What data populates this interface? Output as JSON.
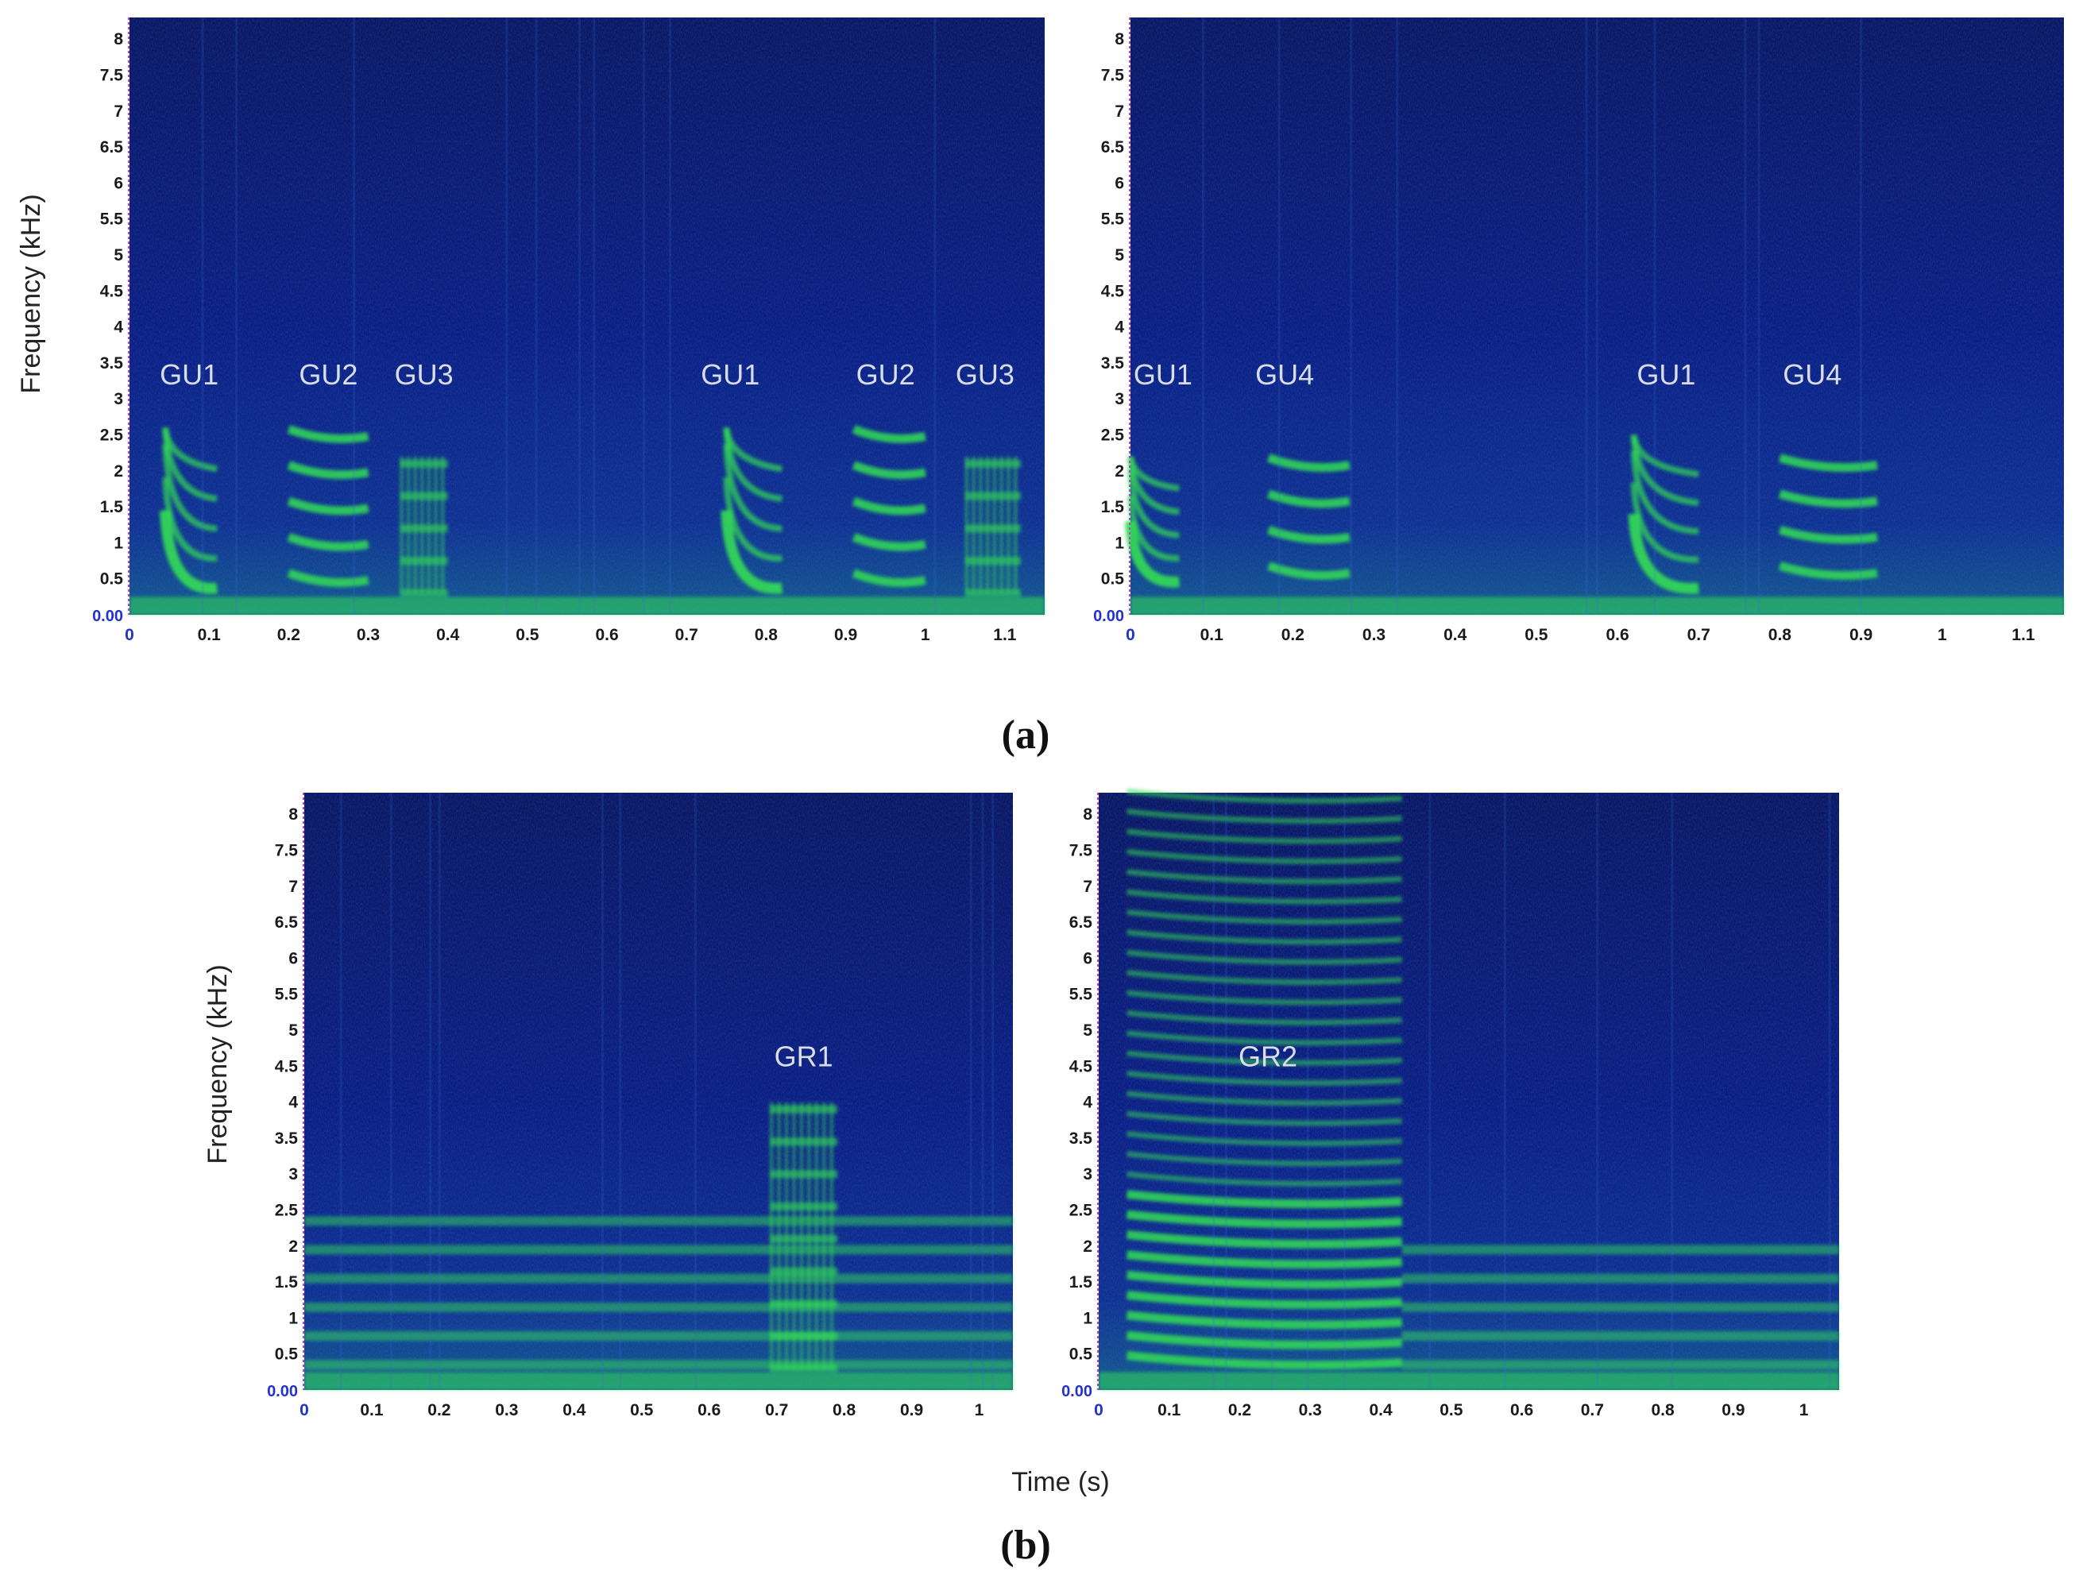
{
  "figure": {
    "panel_labels": [
      "(a)",
      "(b)"
    ],
    "x_axis_label": "Time (s)",
    "y_axis_label": "Frequency (kHz)",
    "zero_label": "0.00",
    "colors": {
      "background": "#0a1a7a",
      "energy": "#33dd55",
      "zero_tick": "#2233cc"
    }
  },
  "chart_data": [
    {
      "type": "heatmap",
      "title": "",
      "ylabel": "Frequency (kHz)",
      "xlabel": "",
      "xlim": [
        0,
        1.15
      ],
      "ylim": [
        0,
        8.3
      ],
      "y_ticks": [
        "8",
        "7.5",
        "7",
        "6.5",
        "6",
        "5.5",
        "5",
        "4.5",
        "4",
        "3.5",
        "3",
        "2.5",
        "2",
        "1.5",
        "1",
        "0.5"
      ],
      "x_ticks": [
        "0",
        "0.1",
        "0.2",
        "0.3",
        "0.4",
        "0.5",
        "0.6",
        "0.7",
        "0.8",
        "0.9",
        "1",
        "1.1"
      ],
      "annotations": [
        {
          "text": "GU1",
          "x": 0.075,
          "y": 3.2
        },
        {
          "text": "GU2",
          "x": 0.25,
          "y": 3.2
        },
        {
          "text": "GU3",
          "x": 0.37,
          "y": 3.2
        },
        {
          "text": "GU1",
          "x": 0.755,
          "y": 3.2
        },
        {
          "text": "GU2",
          "x": 0.95,
          "y": 3.2
        },
        {
          "text": "GU3",
          "x": 1.075,
          "y": 3.2
        }
      ],
      "calls": [
        {
          "t0": 0.045,
          "t1": 0.11,
          "f_low": 0.3,
          "f_high": 2.6,
          "style": "sweep"
        },
        {
          "t0": 0.2,
          "t1": 0.3,
          "f_low": 0.5,
          "f_high": 2.6,
          "style": "harmonic"
        },
        {
          "t0": 0.34,
          "t1": 0.4,
          "f_low": 0.3,
          "f_high": 2.2,
          "style": "pulse"
        },
        {
          "t0": 0.75,
          "t1": 0.82,
          "f_low": 0.3,
          "f_high": 2.6,
          "style": "sweep"
        },
        {
          "t0": 0.91,
          "t1": 1.0,
          "f_low": 0.5,
          "f_high": 2.6,
          "style": "harmonic"
        },
        {
          "t0": 1.05,
          "t1": 1.12,
          "f_low": 0.3,
          "f_high": 2.2,
          "style": "pulse"
        }
      ]
    },
    {
      "type": "heatmap",
      "title": "",
      "ylabel": "",
      "xlabel": "",
      "xlim": [
        0,
        1.15
      ],
      "ylim": [
        0,
        8.3
      ],
      "y_ticks": [
        "8",
        "7.5",
        "7",
        "6.5",
        "6",
        "5.5",
        "5",
        "4.5",
        "4",
        "3.5",
        "3",
        "2.5",
        "2",
        "1.5",
        "1",
        "0.5"
      ],
      "x_ticks": [
        "0",
        "0.1",
        "0.2",
        "0.3",
        "0.4",
        "0.5",
        "0.6",
        "0.7",
        "0.8",
        "0.9",
        "1",
        "1.1"
      ],
      "annotations": [
        {
          "text": "GU1",
          "x": 0.04,
          "y": 3.2
        },
        {
          "text": "GU4",
          "x": 0.19,
          "y": 3.2
        },
        {
          "text": "GU1",
          "x": 0.66,
          "y": 3.2
        },
        {
          "text": "GU4",
          "x": 0.84,
          "y": 3.2
        }
      ],
      "calls": [
        {
          "t0": 0.0,
          "t1": 0.06,
          "f_low": 0.4,
          "f_high": 2.2,
          "style": "sweep"
        },
        {
          "t0": 0.17,
          "t1": 0.27,
          "f_low": 0.6,
          "f_high": 2.3,
          "style": "harmonic"
        },
        {
          "t0": 0.62,
          "t1": 0.7,
          "f_low": 0.3,
          "f_high": 2.5,
          "style": "sweep"
        },
        {
          "t0": 0.8,
          "t1": 0.92,
          "f_low": 0.6,
          "f_high": 2.5,
          "style": "harmonic"
        }
      ]
    },
    {
      "type": "heatmap",
      "title": "",
      "ylabel": "Frequency (kHz)",
      "xlabel": "",
      "xlim": [
        0,
        1.05
      ],
      "ylim": [
        0,
        8.3
      ],
      "y_ticks": [
        "8",
        "7.5",
        "7",
        "6.5",
        "6",
        "5.5",
        "5",
        "4.5",
        "4",
        "3.5",
        "3",
        "2.5",
        "2",
        "1.5",
        "1",
        "0.5"
      ],
      "x_ticks": [
        "0",
        "0.1",
        "0.2",
        "0.3",
        "0.4",
        "0.5",
        "0.6",
        "0.7",
        "0.8",
        "0.9",
        "1"
      ],
      "annotations": [
        {
          "text": "GR1",
          "x": 0.74,
          "y": 4.5
        }
      ],
      "calls": [
        {
          "t0": 0.0,
          "t1": 1.05,
          "f_low": 0.2,
          "f_high": 2.4,
          "style": "band"
        },
        {
          "t0": 0.69,
          "t1": 0.79,
          "f_low": 0.3,
          "f_high": 4.0,
          "style": "pulse"
        }
      ]
    },
    {
      "type": "heatmap",
      "title": "",
      "ylabel": "",
      "xlabel": "Time (s)",
      "xlim": [
        0,
        1.05
      ],
      "ylim": [
        0,
        8.3
      ],
      "y_ticks": [
        "8",
        "7.5",
        "7",
        "6.5",
        "6",
        "5.5",
        "5",
        "4.5",
        "4",
        "3.5",
        "3",
        "2.5",
        "2",
        "1.5",
        "1",
        "0.5"
      ],
      "x_ticks": [
        "0",
        "0.1",
        "0.2",
        "0.3",
        "0.4",
        "0.5",
        "0.6",
        "0.7",
        "0.8",
        "0.9",
        "1"
      ],
      "annotations": [
        {
          "text": "GR2",
          "x": 0.24,
          "y": 4.5
        }
      ],
      "calls": [
        {
          "t0": 0.04,
          "t1": 0.43,
          "f_low": 0.4,
          "f_high": 8.3,
          "style": "harmonic"
        },
        {
          "t0": 0.43,
          "t1": 1.05,
          "f_low": 0.2,
          "f_high": 2.3,
          "style": "band"
        }
      ]
    }
  ]
}
